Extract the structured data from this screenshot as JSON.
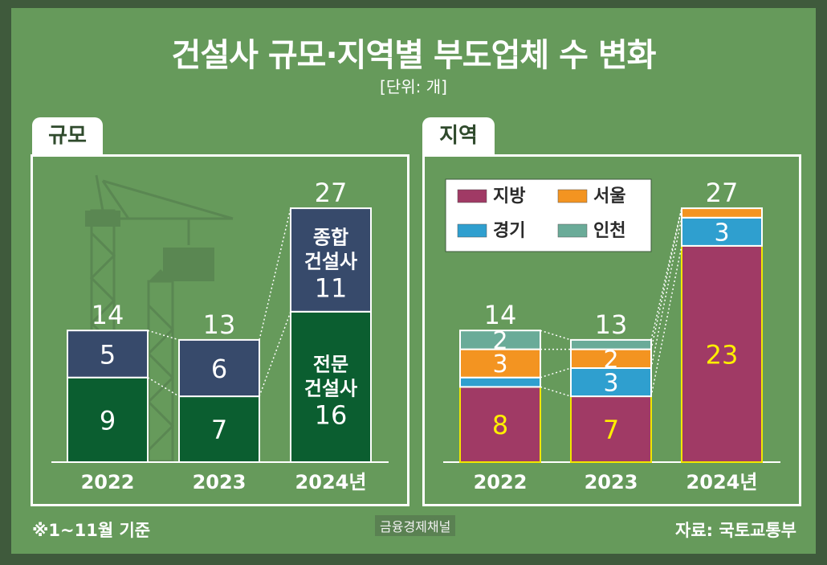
{
  "title": "건설사 규모·지역별 부도업체 수 변화",
  "unit": "[단위: 개]",
  "footnote": "※1~11월 기준",
  "source": "자료: 국토교통부",
  "watermark": "금융경제채널",
  "panels": {
    "size_tab": "규모",
    "region_tab": "지역"
  },
  "colors": {
    "comprehensive": "#374a6b",
    "specialty": "#0b5e30",
    "local": "#a03a65",
    "seoul": "#f39421",
    "gyeonggi": "#2f9fcf",
    "incheon": "#6aab98",
    "background": "#669a5b"
  },
  "chart_data": [
    {
      "type": "bar",
      "stacked": true,
      "panel": "규모",
      "categories": [
        "2022",
        "2023",
        "2024년"
      ],
      "series": [
        {
          "name": "전문 건설사",
          "values": [
            9,
            7,
            16
          ],
          "color": "#0b5e30"
        },
        {
          "name": "종합 건설사",
          "values": [
            5,
            6,
            11
          ],
          "color": "#374a6b"
        }
      ],
      "totals": [
        14,
        13,
        27
      ],
      "ylim": [
        0,
        30
      ]
    },
    {
      "type": "bar",
      "stacked": true,
      "panel": "지역",
      "categories": [
        "2022",
        "2023",
        "2024년"
      ],
      "series": [
        {
          "name": "지방",
          "values": [
            8,
            7,
            23
          ],
          "color": "#a03a65"
        },
        {
          "name": "경기",
          "values": [
            1,
            3,
            3
          ],
          "color": "#2f9fcf"
        },
        {
          "name": "서울",
          "values": [
            3,
            2,
            1
          ],
          "color": "#f39421"
        },
        {
          "name": "인천",
          "values": [
            2,
            1,
            0
          ],
          "color": "#6aab98"
        }
      ],
      "segment_labels": [
        [
          "8",
          "",
          "3",
          "2"
        ],
        [
          "7",
          "3",
          "2",
          ""
        ],
        [
          "23",
          "3",
          "",
          ""
        ]
      ],
      "totals": [
        14,
        13,
        27
      ],
      "legend": [
        "지방",
        "서울",
        "경기",
        "인천"
      ],
      "legend_position": "top-left",
      "ylim": [
        0,
        30
      ]
    }
  ]
}
